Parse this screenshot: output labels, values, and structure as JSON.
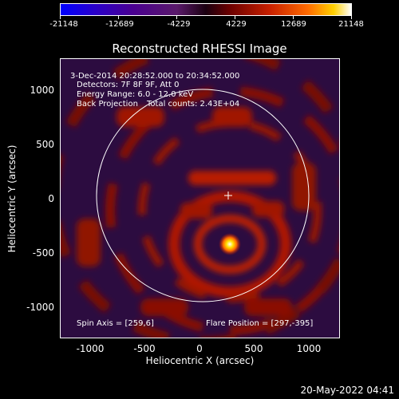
{
  "colorbar": {
    "ticks": [
      "-21148",
      "-12689",
      "-4229",
      "4229",
      "12689",
      "21148"
    ]
  },
  "title": "Reconstructed RHESSI Image",
  "info": {
    "time": "3-Dec-2014 20:28:52.000 to 20:34:52.000",
    "detectors": "Detectors: 7F 8F 9F, Att 0",
    "energy": "Energy Range: 6.0 - 12.0 keV",
    "method": "Back Projection",
    "counts": "Total counts: 2.43E+04",
    "spin_axis": "Spin Axis = [259,6]",
    "flare_position": "Flare Position = [297,-395]"
  },
  "axes": {
    "xlabel": "Heliocentric X (arcsec)",
    "ylabel": "Heliocentric Y (arcsec)",
    "xticks": [
      "-1000",
      "-500",
      "0",
      "500",
      "1000"
    ],
    "yticks": [
      "1000",
      "500",
      "0",
      "-500",
      "-1000"
    ]
  },
  "timestamp": "20-May-2022 04:41",
  "colors": {
    "background": "#000000",
    "foreground": "#ffffff"
  }
}
